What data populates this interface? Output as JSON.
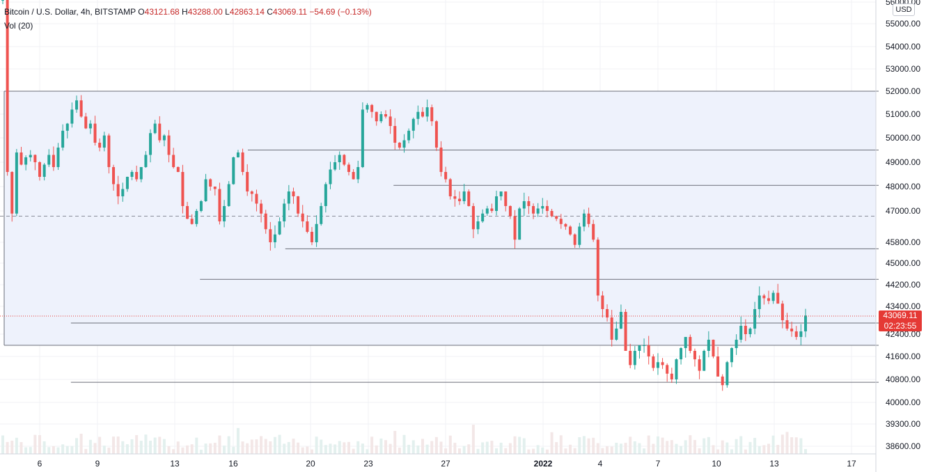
{
  "legend": {
    "symbol": "Bitcoin / U.S. Dollar, 4h, BITSTAMP",
    "open_label": "O",
    "open": "43121.68",
    "high_label": "H",
    "high": "43288.00",
    "low_label": "L",
    "low": "42863.14",
    "close_label": "C",
    "close": "43069.11",
    "change": "−54.69 (−0.13%)",
    "volume": "Vol (20)"
  },
  "currency": "USD",
  "last_price": {
    "price": "43069.11",
    "countdown": "02:23:55",
    "value": 43069.11
  },
  "colors": {
    "up": "#26a69a",
    "down": "#ef5350",
    "zone": "#eef2fc",
    "line": "#6a6d78",
    "last": "#e53935"
  },
  "chart_data": {
    "type": "candlestick",
    "y_ticks": [
      "56000.00",
      "55000.00",
      "54000.00",
      "53000.00",
      "52000.00",
      "51000.00",
      "50000.00",
      "49000.00",
      "48000.00",
      "47000.00",
      "45800.00",
      "45000.00",
      "44200.00",
      "43400.00",
      "42400.00",
      "41600.00",
      "40800.00",
      "40000.00",
      "39300.00",
      "38600.00"
    ],
    "x_ticks": [
      "6",
      "9",
      "13",
      "16",
      "20",
      "23",
      "27",
      "2022",
      "4",
      "7",
      "10",
      "13",
      "17"
    ],
    "grid": true,
    "range_box": {
      "top": 52000,
      "bottom": 42000
    },
    "dashed_level": 46800,
    "levels": [
      {
        "price": 49500,
        "from_day": 16
      },
      {
        "price": 48050,
        "from_day": 23
      },
      {
        "price": 45550,
        "from_day": 17.8
      },
      {
        "price": 44400,
        "from_day": 13.7
      },
      {
        "price": 42800,
        "from_day": 7.5
      },
      {
        "price": 40700,
        "from_day": 7.5
      }
    ],
    "closes": [
      56100,
      48600,
      46900,
      49400,
      48900,
      49200,
      49300,
      49000,
      48400,
      48900,
      49300,
      48800,
      49600,
      50300,
      50600,
      51200,
      51600,
      50900,
      50400,
      50600,
      49800,
      49600,
      50100,
      48800,
      48100,
      47600,
      47900,
      48400,
      48600,
      48300,
      48800,
      49300,
      50200,
      50600,
      49900,
      50100,
      49300,
      48800,
      48600,
      47200,
      46700,
      46500,
      47000,
      47400,
      48300,
      48000,
      47900,
      46600,
      47200,
      48100,
      49200,
      49400,
      48600,
      47800,
      47700,
      47300,
      46900,
      46300,
      45800,
      46100,
      46600,
      47300,
      47800,
      47600,
      46900,
      46600,
      46200,
      45800,
      46500,
      47200,
      48100,
      48700,
      49000,
      49300,
      48900,
      48600,
      48300,
      48800,
      51200,
      51400,
      51100,
      50700,
      51000,
      50900,
      50500,
      49800,
      49600,
      49900,
      50300,
      50800,
      51100,
      50900,
      51300,
      50700,
      49600,
      48600,
      48300,
      47600,
      47500,
      47400,
      47800,
      47200,
      46300,
      46600,
      46900,
      47100,
      47000,
      47600,
      47800,
      47200,
      46800,
      45900,
      47100,
      47400,
      47200,
      46900,
      47100,
      47200,
      47000,
      46800,
      46700,
      46500,
      46400,
      46100,
      45700,
      46400,
      46900,
      46500,
      45900,
      43800,
      43300,
      43000,
      42200,
      42600,
      43200,
      41800,
      41300,
      41800,
      42000,
      42000,
      41600,
      41200,
      41400,
      41300,
      41000,
      40800,
      41500,
      41900,
      42300,
      41800,
      41500,
      41100,
      41800,
      42200,
      41600,
      40900,
      40600,
      41400,
      41900,
      42200,
      42700,
      42400,
      42600,
      43300,
      43800,
      43700,
      43600,
      43900,
      43500,
      42900,
      42600,
      42500,
      42300,
      42500,
      43069.11
    ],
    "series": [
      {
        "values_note_free": true
      }
    ],
    "volume_label": "Vol (20)"
  }
}
